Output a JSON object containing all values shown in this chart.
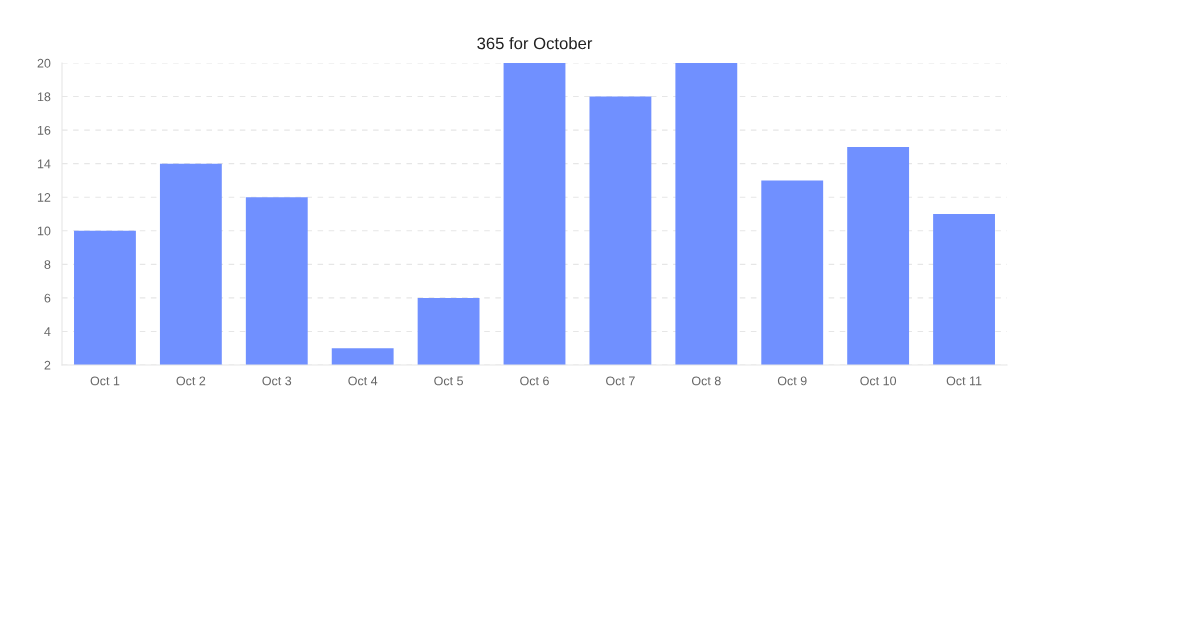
{
  "chart_data": {
    "type": "bar",
    "title": "365 for October",
    "categories": [
      "Oct 1",
      "Oct 2",
      "Oct 3",
      "Oct 4",
      "Oct 5",
      "Oct 6",
      "Oct 7",
      "Oct 8",
      "Oct 9",
      "Oct 10",
      "Oct 11"
    ],
    "values": [
      10,
      14,
      12,
      3,
      6,
      20,
      18,
      20,
      13,
      15,
      11
    ],
    "color": "#7090ff",
    "ylim": [
      2,
      20
    ],
    "yticks": [
      2,
      4,
      6,
      8,
      10,
      12,
      14,
      16,
      18,
      20
    ],
    "grid": "y",
    "legend": false
  }
}
